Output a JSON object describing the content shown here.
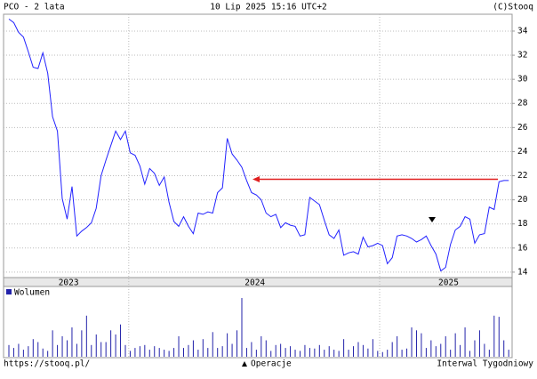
{
  "header": {
    "left": "PCO - 2 lata",
    "center": "10 Lip 2025 15:16 UTC+2",
    "right": "(C)Stooq"
  },
  "footer": {
    "left": "https://stooq.pl/",
    "center": "Operacje",
    "right": "Interwal Tygodniowy"
  },
  "chart_data": [
    {
      "type": "line",
      "color": "#2222ff",
      "values": [
        35.0,
        34.7,
        33.9,
        33.5,
        32.3,
        31.0,
        30.9,
        32.2,
        30.5,
        26.9,
        25.7,
        20.1,
        18.4,
        21.1,
        17.0,
        17.4,
        17.7,
        18.1,
        19.3,
        22.0,
        23.3,
        24.5,
        25.7,
        25.0,
        25.7,
        23.9,
        23.7,
        22.8,
        21.3,
        22.6,
        22.2,
        21.2,
        21.9,
        19.8,
        18.2,
        17.8,
        18.6,
        17.8,
        17.2,
        18.9,
        18.8,
        19.0,
        18.9,
        20.6,
        21.0,
        25.1,
        23.8,
        23.3,
        22.7,
        21.6,
        20.6,
        20.4,
        20.0,
        18.9,
        18.6,
        18.8,
        17.7,
        18.1,
        17.9,
        17.8,
        17.0,
        17.1,
        20.2,
        19.9,
        19.6,
        18.3,
        17.1,
        16.8,
        17.5,
        15.4,
        15.6,
        15.7,
        15.5,
        16.9,
        16.1,
        16.2,
        16.4,
        16.2,
        14.7,
        15.2,
        17.0,
        17.1,
        17.0,
        16.8,
        16.5,
        16.7,
        17.0,
        16.2,
        15.5,
        14.1,
        14.4,
        16.3,
        17.5,
        17.8,
        18.6,
        18.4,
        16.4,
        17.1,
        17.2,
        19.4,
        19.2,
        21.5,
        21.6,
        21.6
      ],
      "xlim": [
        -1.1,
        103.7
      ],
      "ylim": [
        13.55,
        35.4
      ],
      "yticks": [
        14,
        16,
        18,
        20,
        22,
        24,
        26,
        28,
        30,
        32,
        34
      ],
      "xgrid": [
        24.7,
        76.4
      ],
      "xticks": [
        {
          "value": 12.3,
          "label": "2023"
        },
        {
          "value": 50.7,
          "label": "2024"
        },
        {
          "value": 90.6,
          "label": "2025"
        }
      ],
      "grid": true
    },
    {
      "type": "volume",
      "name": "Wolumen",
      "color": "#2222aa",
      "values": [
        20,
        15,
        22,
        12,
        18,
        30,
        25,
        14,
        10,
        45,
        20,
        35,
        28,
        50,
        22,
        45,
        70,
        20,
        38,
        25,
        25,
        45,
        38,
        55,
        20,
        10,
        15,
        18,
        20,
        12,
        18,
        15,
        12,
        10,
        15,
        35,
        15,
        20,
        28,
        12,
        30,
        15,
        42,
        15,
        18,
        40,
        22,
        45,
        100,
        15,
        25,
        12,
        35,
        28,
        10,
        20,
        22,
        15,
        18,
        12,
        10,
        20,
        15,
        14,
        20,
        12,
        18,
        12,
        10,
        30,
        12,
        18,
        25,
        20,
        14,
        30,
        10,
        8,
        12,
        25,
        35,
        12,
        14,
        50,
        45,
        40,
        15,
        28,
        18,
        22,
        35,
        12,
        40,
        20,
        50,
        10,
        28,
        45,
        22,
        12,
        70,
        68,
        28,
        12
      ],
      "ylim": [
        0,
        100
      ]
    }
  ]
}
